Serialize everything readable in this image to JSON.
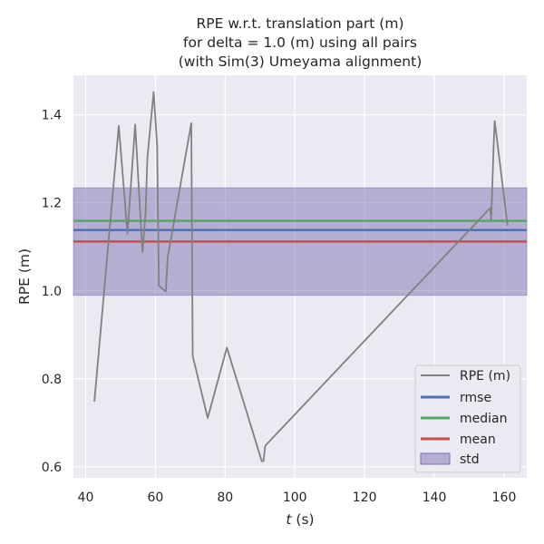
{
  "chart_data": {
    "type": "line",
    "title": [
      "RPE w.r.t. translation part (m)",
      "for delta = 1.0 (m) using all pairs",
      "(with Sim(3) Umeyama alignment)"
    ],
    "xlabel_italic": "t",
    "xlabel_rest": " (s)",
    "ylabel": "RPE (m)",
    "xlim": [
      36.5,
      166.5
    ],
    "ylim": [
      0.575,
      1.49
    ],
    "xticks": [
      40,
      60,
      80,
      100,
      120,
      140,
      160
    ],
    "yticks": [
      0.6,
      0.8,
      1.0,
      1.2,
      1.4
    ],
    "ytick_labels": [
      "0.6",
      "0.8",
      "1.0",
      "1.2",
      "1.4"
    ],
    "grid": true,
    "legend_position": "lower-right",
    "series": [
      {
        "name": "RPE (m)",
        "color": "#808080",
        "x": [
          42.5,
          49.5,
          52,
          54.2,
          56.3,
          57.2,
          57.7,
          59.5,
          60.5,
          61,
          63,
          63.5,
          70.3,
          70.7,
          75,
          80.5,
          90.5,
          91,
          91.5,
          156,
          156.3,
          157,
          157.3,
          161
        ],
        "y": [
          0.748,
          1.375,
          1.13,
          1.378,
          1.088,
          1.18,
          1.302,
          1.452,
          1.33,
          1.012,
          0.998,
          1.075,
          1.381,
          0.852,
          0.711,
          0.871,
          0.613,
          0.613,
          0.648,
          1.188,
          1.162,
          1.33,
          1.386,
          1.148
        ]
      }
    ],
    "stats": {
      "rmse": {
        "name": "rmse",
        "value": 1.138,
        "color": "#4c72b0"
      },
      "median": {
        "name": "median",
        "value": 1.159,
        "color": "#55a868"
      },
      "mean": {
        "name": "mean",
        "value": 1.112,
        "color": "#c44e52"
      },
      "std": {
        "name": "std",
        "low": 0.99,
        "high": 1.234,
        "color": "#8172b2"
      }
    },
    "colors": {
      "background": "#eaeaf2",
      "grid": "#ffffff"
    }
  }
}
